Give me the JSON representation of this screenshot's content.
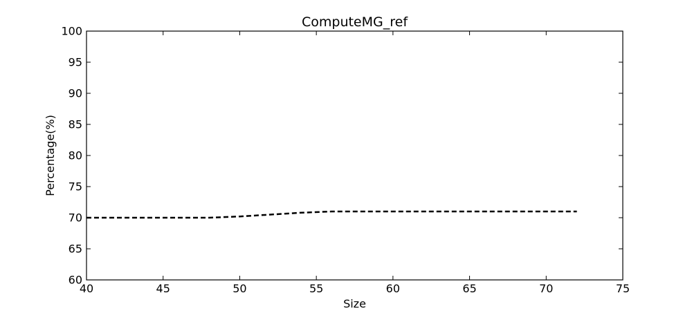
{
  "chart_data": {
    "type": "line",
    "title": "ComputeMG_ref",
    "xlabel": "Size",
    "ylabel": "Percentage(%)",
    "xlim": [
      40,
      75
    ],
    "ylim": [
      60,
      100
    ],
    "xticks": [
      "40",
      "45",
      "50",
      "55",
      "60",
      "65",
      "70",
      "75"
    ],
    "yticks": [
      "60",
      "65",
      "70",
      "75",
      "80",
      "85",
      "90",
      "95",
      "100"
    ],
    "grid": false,
    "series": [
      {
        "color": "#000000",
        "line_style": "dashed",
        "x": [
          40,
          48,
          50,
          52,
          54,
          56,
          58,
          60,
          62,
          64,
          66,
          68,
          70,
          72
        ],
        "y": [
          70,
          70,
          70.2,
          70.5,
          70.8,
          71,
          71,
          71,
          71,
          71,
          71,
          71,
          71,
          71
        ]
      }
    ]
  }
}
